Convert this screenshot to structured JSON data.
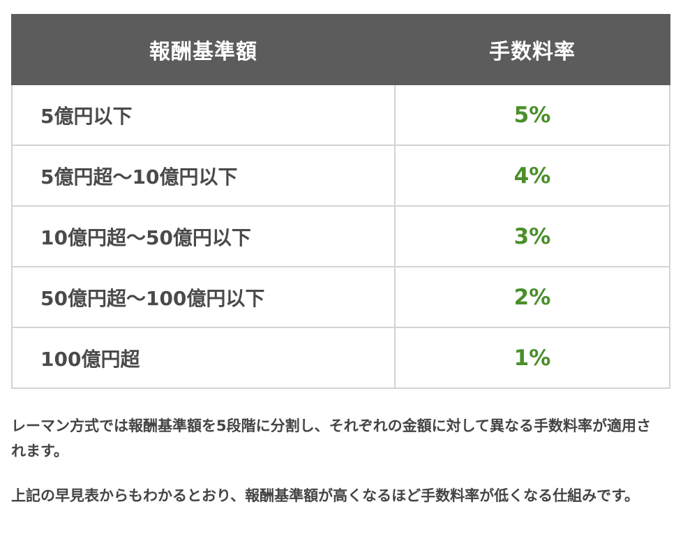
{
  "table": {
    "headers": [
      "報酬基準額",
      "手数料率"
    ],
    "rows": [
      {
        "range": "5億円以下",
        "rate": "5%"
      },
      {
        "range": "5億円超～10億円以下",
        "rate": "4%"
      },
      {
        "range": "10億円超～50億円以下",
        "rate": "3%"
      },
      {
        "range": "50億円超～100億円以下",
        "rate": "2%"
      },
      {
        "range": "100億円超",
        "rate": "1%"
      }
    ]
  },
  "paragraphs": [
    "レーマン方式では報酬基準額を5段階に分割し、それぞれの金額に対して異なる手数料率が適用されます。",
    "上記の早見表からもわかるとおり、報酬基準額が高くなるほど手数料率が低くなる仕組みです。"
  ],
  "colors": {
    "header_bg": "#5c5c5c",
    "header_text": "#ffffff",
    "rate_text": "#4a8f2a",
    "body_text": "#444444",
    "border": "#d3d3d3"
  }
}
